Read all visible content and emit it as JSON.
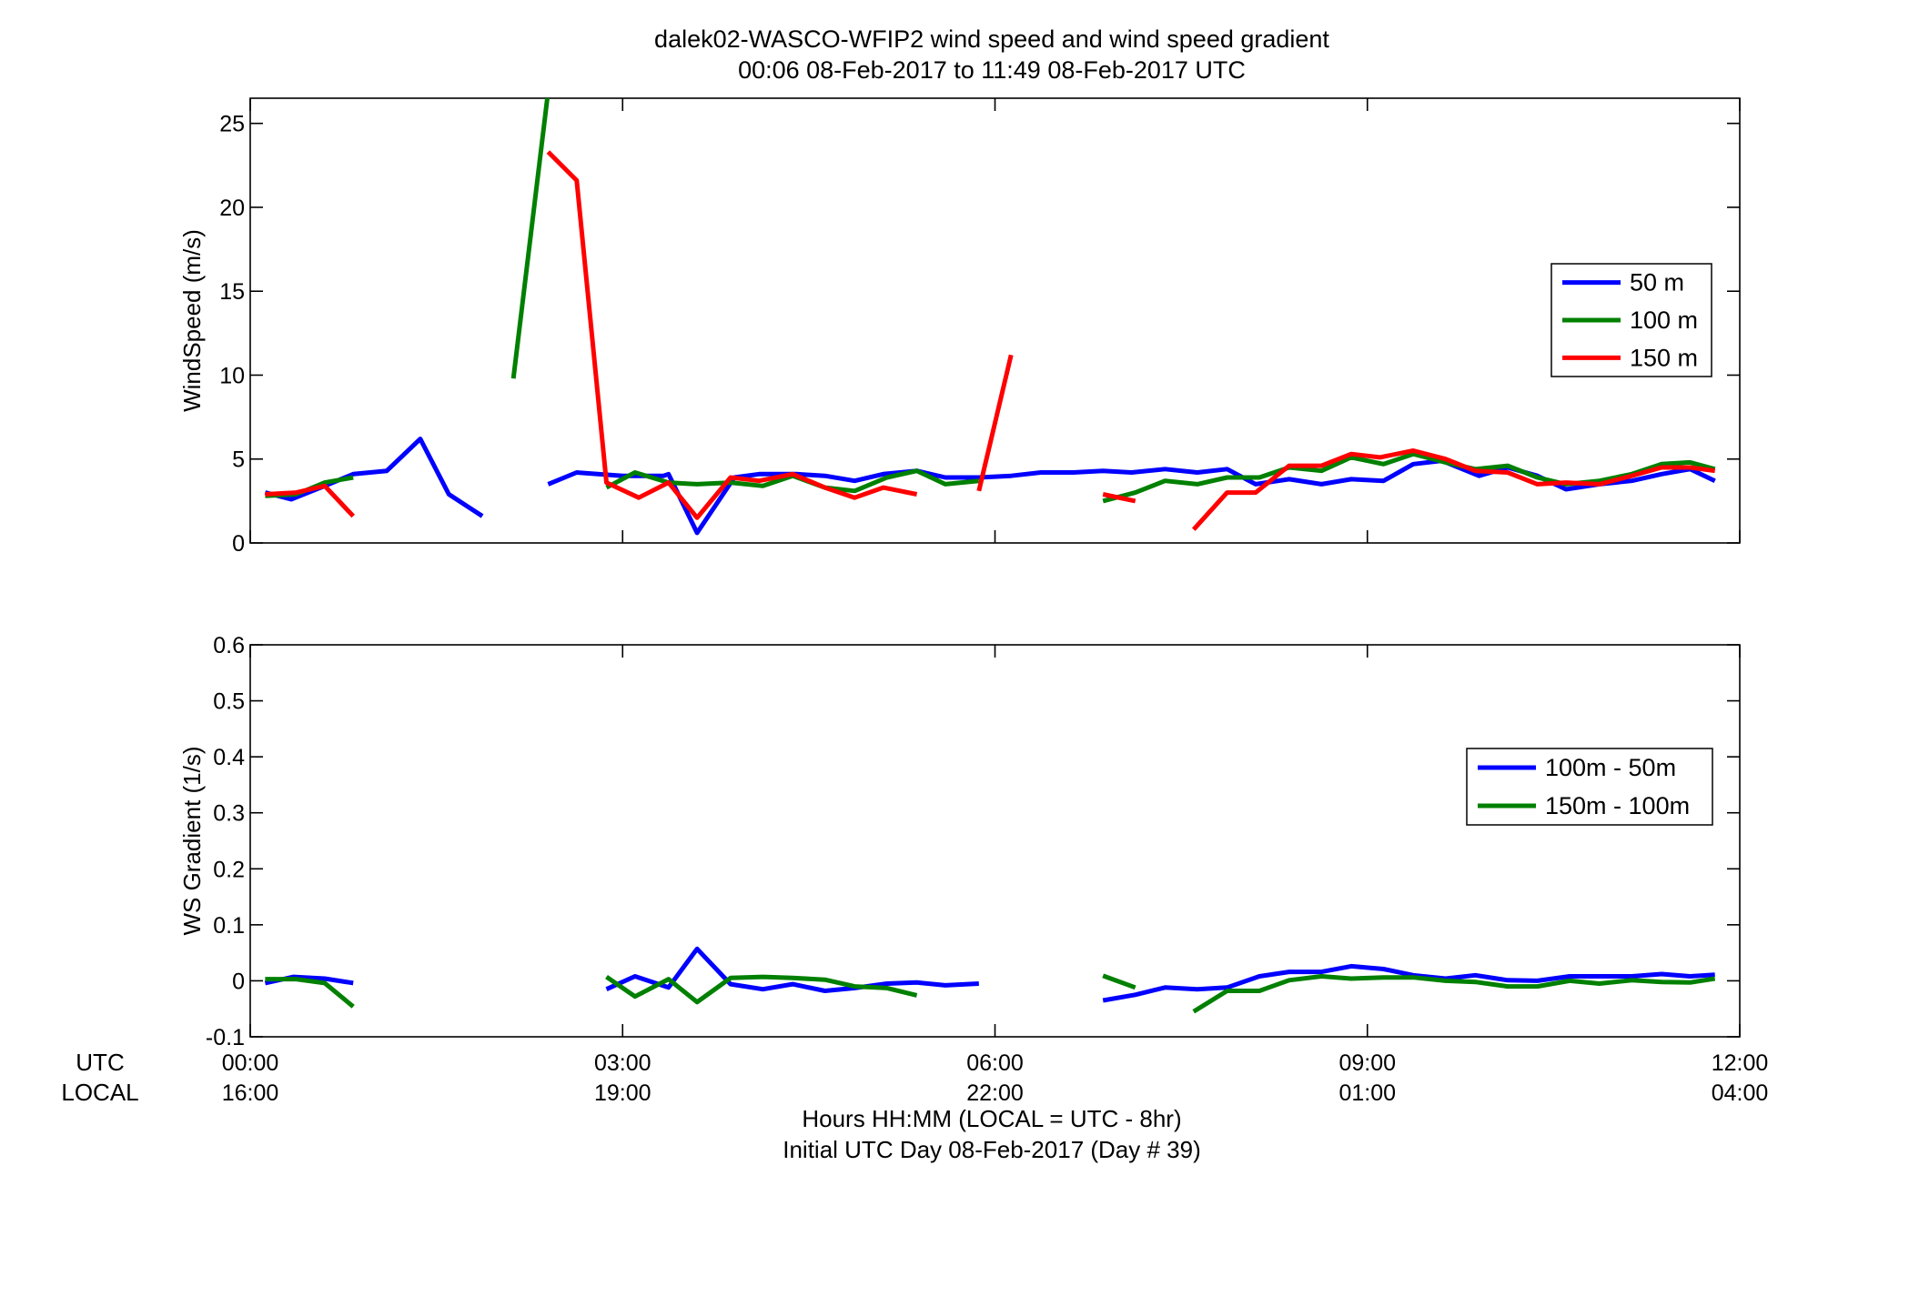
{
  "title_line1": "dalek02-WASCO-WFIP2  wind speed and wind speed gradient",
  "title_line2": "00:06 08-Feb-2017 to 11:49 08-Feb-2017  UTC",
  "row_label_utc": "UTC",
  "row_label_local": "LOCAL",
  "xlabel_line1": "Hours HH:MM  (LOCAL = UTC - 8hr)",
  "xlabel_line2": "Initial UTC Day 08-Feb-2017 (Day # 39)",
  "colors": {
    "blue": "#0000ff",
    "green": "#008000",
    "red": "#ff0000"
  },
  "chart_data": [
    {
      "type": "line",
      "ylabel": "WindSpeed (m/s)",
      "xlim": [
        0,
        12
      ],
      "ylim": [
        0,
        26.5
      ],
      "grid": false,
      "legend_position": "right",
      "xticks": [
        0,
        3,
        6,
        9,
        12
      ],
      "xtick_labels_utc": [
        "00:00",
        "03:00",
        "06:00",
        "09:00",
        "12:00"
      ],
      "xtick_labels_local": [
        "16:00",
        "19:00",
        "22:00",
        "01:00",
        "04:00"
      ],
      "yticks": [
        0,
        5,
        10,
        15,
        20,
        25
      ],
      "ytick_labels": [
        "0",
        "5",
        "10",
        "15",
        "20",
        "25"
      ],
      "series": [
        {
          "name": "50 m",
          "color": "#0000ff",
          "segments": [
            [
              [
                0.12,
                3.0
              ],
              [
                0.33,
                2.6
              ],
              [
                0.6,
                3.4
              ],
              [
                0.83,
                4.1
              ],
              [
                1.1,
                4.3
              ],
              [
                1.37,
                6.2
              ],
              [
                1.6,
                2.9
              ],
              [
                1.87,
                1.6
              ]
            ],
            [
              [
                2.4,
                3.5
              ],
              [
                2.63,
                4.2
              ],
              [
                3.0,
                4.0
              ],
              [
                3.33,
                4.0
              ],
              [
                3.37,
                4.1
              ],
              [
                3.6,
                0.6
              ],
              [
                3.9,
                3.9
              ],
              [
                4.1,
                4.1
              ],
              [
                4.4,
                4.1
              ],
              [
                4.63,
                4.0
              ],
              [
                4.87,
                3.7
              ],
              [
                5.1,
                4.1
              ],
              [
                5.37,
                4.3
              ],
              [
                5.6,
                3.9
              ],
              [
                5.87,
                3.9
              ],
              [
                6.13,
                4.0
              ],
              [
                6.37,
                4.2
              ],
              [
                6.63,
                4.2
              ],
              [
                6.87,
                4.3
              ],
              [
                7.1,
                4.2
              ],
              [
                7.37,
                4.4
              ],
              [
                7.63,
                4.2
              ],
              [
                7.87,
                4.4
              ],
              [
                8.1,
                3.5
              ],
              [
                8.37,
                3.8
              ],
              [
                8.63,
                3.5
              ],
              [
                8.87,
                3.8
              ],
              [
                9.13,
                3.7
              ],
              [
                9.37,
                4.7
              ],
              [
                9.6,
                4.9
              ],
              [
                9.9,
                4.0
              ],
              [
                10.13,
                4.5
              ],
              [
                10.37,
                4.0
              ],
              [
                10.6,
                3.2
              ],
              [
                10.87,
                3.5
              ],
              [
                11.13,
                3.7
              ],
              [
                11.37,
                4.1
              ],
              [
                11.6,
                4.4
              ],
              [
                11.8,
                3.7
              ]
            ]
          ]
        },
        {
          "name": "100 m",
          "color": "#008000",
          "segments": [
            [
              [
                0.12,
                2.8
              ],
              [
                0.37,
                2.9
              ],
              [
                0.6,
                3.6
              ],
              [
                0.83,
                3.9
              ]
            ],
            [
              [
                2.12,
                9.8
              ],
              [
                2.4,
                26.9
              ]
            ],
            [
              [
                2.87,
                3.3
              ],
              [
                3.1,
                4.2
              ],
              [
                3.37,
                3.6
              ],
              [
                3.6,
                3.5
              ],
              [
                3.87,
                3.6
              ],
              [
                4.13,
                3.4
              ],
              [
                4.37,
                4.0
              ],
              [
                4.63,
                3.3
              ],
              [
                4.87,
                3.1
              ],
              [
                5.13,
                3.9
              ],
              [
                5.37,
                4.3
              ],
              [
                5.6,
                3.5
              ],
              [
                5.87,
                3.7
              ]
            ],
            [
              [
                6.87,
                2.5
              ],
              [
                7.13,
                3.0
              ],
              [
                7.37,
                3.7
              ],
              [
                7.63,
                3.5
              ],
              [
                7.87,
                3.9
              ],
              [
                8.13,
                3.9
              ],
              [
                8.37,
                4.5
              ],
              [
                8.63,
                4.3
              ],
              [
                8.87,
                5.1
              ],
              [
                9.13,
                4.7
              ],
              [
                9.37,
                5.3
              ],
              [
                9.63,
                4.8
              ],
              [
                9.87,
                4.4
              ],
              [
                10.13,
                4.6
              ],
              [
                10.37,
                3.9
              ],
              [
                10.6,
                3.5
              ],
              [
                10.87,
                3.7
              ],
              [
                11.13,
                4.1
              ],
              [
                11.37,
                4.7
              ],
              [
                11.6,
                4.8
              ],
              [
                11.8,
                4.4
              ]
            ]
          ]
        },
        {
          "name": "150 m",
          "color": "#ff0000",
          "segments": [
            [
              [
                0.12,
                2.9
              ],
              [
                0.37,
                3.0
              ],
              [
                0.6,
                3.4
              ],
              [
                0.83,
                1.6
              ]
            ],
            [
              [
                2.4,
                23.3
              ],
              [
                2.63,
                21.6
              ],
              [
                2.87,
                3.6
              ],
              [
                3.13,
                2.7
              ],
              [
                3.37,
                3.6
              ],
              [
                3.6,
                1.5
              ],
              [
                3.87,
                3.9
              ],
              [
                4.1,
                3.7
              ],
              [
                4.37,
                4.1
              ],
              [
                4.63,
                3.3
              ],
              [
                4.87,
                2.7
              ],
              [
                5.1,
                3.3
              ],
              [
                5.37,
                2.9
              ]
            ],
            [
              [
                5.87,
                3.1
              ],
              [
                6.13,
                11.2
              ]
            ],
            [
              [
                6.87,
                2.9
              ],
              [
                7.13,
                2.5
              ]
            ],
            [
              [
                7.6,
                0.8
              ],
              [
                7.87,
                3.0
              ],
              [
                8.1,
                3.0
              ],
              [
                8.37,
                4.6
              ],
              [
                8.63,
                4.6
              ],
              [
                8.87,
                5.3
              ],
              [
                9.1,
                5.1
              ],
              [
                9.37,
                5.5
              ],
              [
                9.63,
                5.0
              ],
              [
                9.87,
                4.3
              ],
              [
                10.13,
                4.2
              ],
              [
                10.37,
                3.5
              ],
              [
                10.6,
                3.6
              ],
              [
                10.87,
                3.5
              ],
              [
                11.13,
                4.0
              ],
              [
                11.37,
                4.5
              ],
              [
                11.6,
                4.5
              ],
              [
                11.8,
                4.3
              ]
            ]
          ]
        }
      ]
    },
    {
      "type": "line",
      "ylabel": "WS Gradient (1/s)",
      "xlim": [
        0,
        12
      ],
      "ylim": [
        -0.1,
        0.6
      ],
      "grid": false,
      "legend_position": "right",
      "xticks": [
        0,
        3,
        6,
        9,
        12
      ],
      "yticks": [
        -0.1,
        0,
        0.1,
        0.2,
        0.3,
        0.4,
        0.5,
        0.6
      ],
      "ytick_labels": [
        "-0.1",
        "0",
        "0.1",
        "0.2",
        "0.3",
        "0.4",
        "0.5",
        "0.6"
      ],
      "series": [
        {
          "name": "100m - 50m",
          "color": "#0000ff",
          "segments": [
            [
              [
                0.12,
                -0.004
              ],
              [
                0.35,
                0.007
              ],
              [
                0.6,
                0.004
              ],
              [
                0.83,
                -0.004
              ]
            ],
            [
              [
                2.87,
                -0.015
              ],
              [
                3.1,
                0.008
              ],
              [
                3.37,
                -0.012
              ],
              [
                3.6,
                0.057
              ],
              [
                3.87,
                -0.006
              ],
              [
                4.13,
                -0.015
              ],
              [
                4.37,
                -0.006
              ],
              [
                4.63,
                -0.018
              ],
              [
                4.87,
                -0.013
              ],
              [
                5.13,
                -0.005
              ],
              [
                5.37,
                -0.003
              ],
              [
                5.6,
                -0.008
              ],
              [
                5.87,
                -0.005
              ]
            ],
            [
              [
                6.87,
                -0.035
              ],
              [
                7.13,
                -0.025
              ],
              [
                7.37,
                -0.012
              ],
              [
                7.63,
                -0.015
              ],
              [
                7.87,
                -0.012
              ],
              [
                8.13,
                0.008
              ],
              [
                8.37,
                0.016
              ],
              [
                8.63,
                0.016
              ],
              [
                8.87,
                0.026
              ],
              [
                9.13,
                0.021
              ],
              [
                9.37,
                0.01
              ],
              [
                9.63,
                0.004
              ],
              [
                9.87,
                0.01
              ],
              [
                10.13,
                0.001
              ],
              [
                10.37,
                0.0
              ],
              [
                10.63,
                0.008
              ],
              [
                10.87,
                0.008
              ],
              [
                11.13,
                0.008
              ],
              [
                11.37,
                0.012
              ],
              [
                11.6,
                0.008
              ],
              [
                11.8,
                0.011
              ]
            ]
          ]
        },
        {
          "name": "150m - 100m",
          "color": "#008000",
          "segments": [
            [
              [
                0.12,
                0.003
              ],
              [
                0.37,
                0.003
              ],
              [
                0.6,
                -0.004
              ],
              [
                0.83,
                -0.046
              ]
            ],
            [
              [
                2.87,
                0.007
              ],
              [
                3.1,
                -0.028
              ],
              [
                3.37,
                0.003
              ],
              [
                3.6,
                -0.038
              ],
              [
                3.87,
                0.005
              ],
              [
                4.13,
                0.007
              ],
              [
                4.37,
                0.005
              ],
              [
                4.63,
                0.002
              ],
              [
                4.87,
                -0.01
              ],
              [
                5.13,
                -0.013
              ],
              [
                5.37,
                -0.026
              ]
            ],
            [
              [
                6.87,
                0.009
              ],
              [
                7.13,
                -0.012
              ]
            ],
            [
              [
                7.6,
                -0.055
              ],
              [
                7.87,
                -0.018
              ],
              [
                8.13,
                -0.018
              ],
              [
                8.37,
                0.001
              ],
              [
                8.63,
                0.008
              ],
              [
                8.87,
                0.004
              ],
              [
                9.13,
                0.006
              ],
              [
                9.37,
                0.006
              ],
              [
                9.63,
                0.0
              ],
              [
                9.87,
                -0.002
              ],
              [
                10.13,
                -0.01
              ],
              [
                10.37,
                -0.01
              ],
              [
                10.63,
                0.0
              ],
              [
                10.87,
                -0.005
              ],
              [
                11.13,
                0.001
              ],
              [
                11.37,
                -0.002
              ],
              [
                11.6,
                -0.003
              ],
              [
                11.8,
                0.004
              ]
            ]
          ]
        }
      ]
    }
  ]
}
